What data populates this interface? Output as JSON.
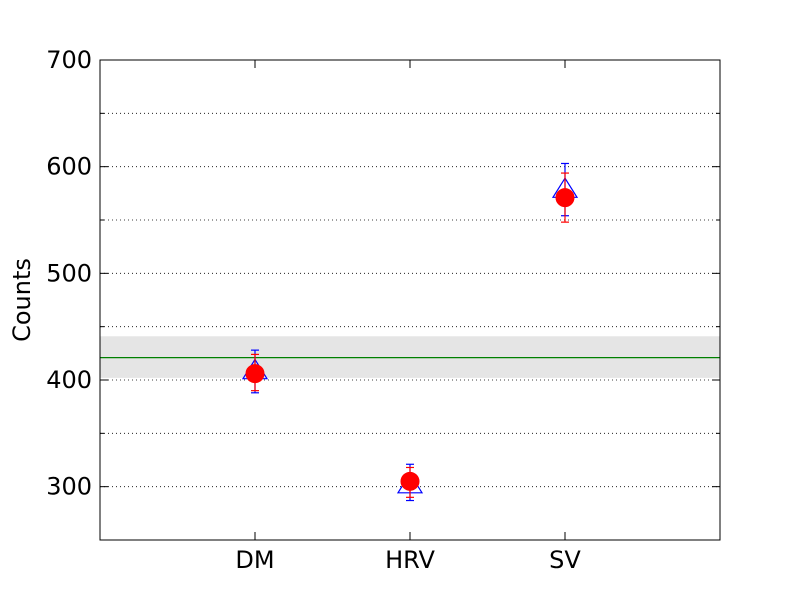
{
  "chart_data": {
    "type": "scatter",
    "title": "",
    "xlabel": "",
    "ylabel": "Counts",
    "categories": [
      "DM",
      "HRV",
      "SV"
    ],
    "ylim": [
      250,
      700
    ],
    "yticks": [
      300,
      400,
      500,
      600,
      700
    ],
    "grid": "horizontal-dotted",
    "reference": {
      "value": 421,
      "band": [
        402,
        441
      ],
      "line_color": "#008000",
      "band_color": "#e5e5e5"
    },
    "series": [
      {
        "marker": "triangle-open",
        "color": "#0000ff",
        "values": [
          408,
          301,
          578
        ],
        "err_low": [
          388,
          287,
          554
        ],
        "err_high": [
          428,
          321,
          603
        ]
      },
      {
        "marker": "circle-filled",
        "color": "#ff0000",
        "values": [
          406,
          305,
          571
        ],
        "err_low": [
          390,
          290,
          548
        ],
        "err_high": [
          424,
          318,
          594
        ]
      }
    ]
  }
}
